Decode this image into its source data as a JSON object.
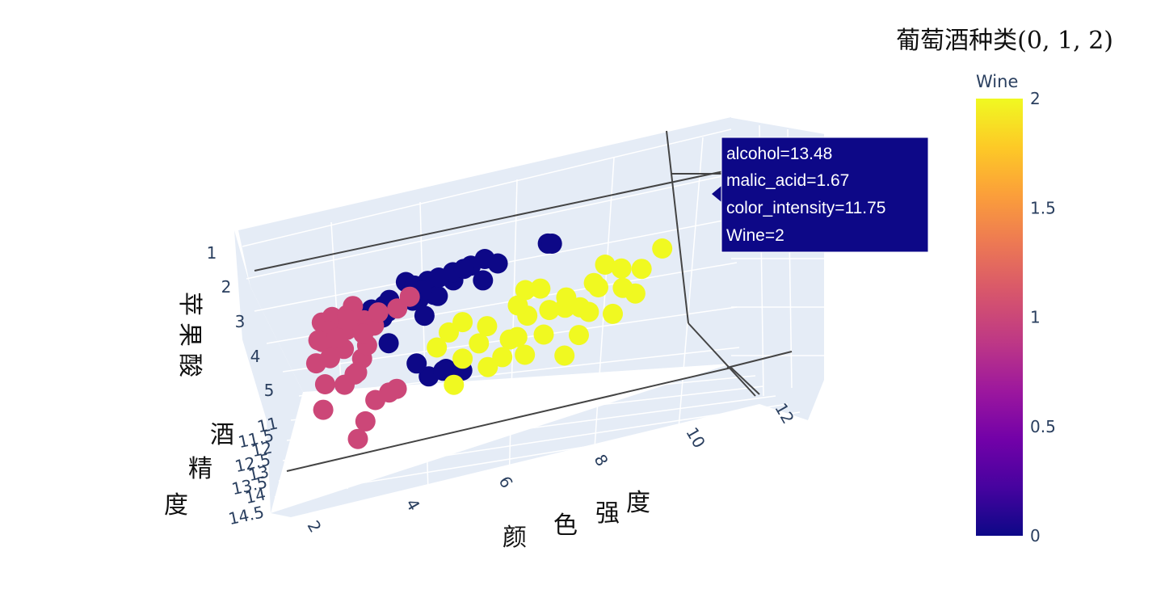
{
  "title": "葡萄酒种类(0, 1, 2)",
  "chart_data": {
    "type": "scatter3d",
    "xlabel": "颜色强度",
    "ylabel": "苹果酸",
    "zlabel": "酒精度",
    "x_ticks": [
      "2",
      "4",
      "6",
      "8",
      "10",
      "12"
    ],
    "y_ticks": [
      "1",
      "2",
      "3",
      "4",
      "5"
    ],
    "z_ticks": [
      "11",
      "11.5",
      "12",
      "12.5",
      "13",
      "13.5",
      "14",
      "14.5"
    ],
    "xlim": [
      1,
      13
    ],
    "ylim": [
      0.7,
      5.8
    ],
    "zlim": [
      11,
      14.8
    ],
    "color_variable": "Wine",
    "colorscale": [
      "#0d0887",
      "#46039f",
      "#7201a8",
      "#9c179e",
      "#bd3786",
      "#d8576b",
      "#ed7953",
      "#fb9f3a",
      "#fdca26",
      "#f0f921"
    ],
    "series": [
      {
        "class": 0,
        "color": "#0d0887",
        "points": [
          [
            4.38,
            1.95,
            13.2
          ],
          [
            5.68,
            2.36,
            14.1
          ],
          [
            4.32,
            1.71,
            13.2
          ],
          [
            5.25,
            1.78,
            13.3
          ],
          [
            5.05,
            1.81,
            14.2
          ],
          [
            5.2,
            1.92,
            13.7
          ],
          [
            7.2,
            1.57,
            14.3
          ],
          [
            5.6,
            1.59,
            13.8
          ],
          [
            7.5,
            1.73,
            14.2
          ],
          [
            4.5,
            1.86,
            13.6
          ],
          [
            6.25,
            1.65,
            13.7
          ],
          [
            5.1,
            1.7,
            13.5
          ],
          [
            5.24,
            1.83,
            14.0
          ],
          [
            5.75,
            1.87,
            13.4
          ],
          [
            6.8,
            1.64,
            14.2
          ],
          [
            7.0,
            1.76,
            13.6
          ],
          [
            5.4,
            1.9,
            13.8
          ],
          [
            4.2,
            1.97,
            13.0
          ],
          [
            6.3,
            1.68,
            14.1
          ],
          [
            5.9,
            1.62,
            13.9
          ],
          [
            8.9,
            1.5,
            14.4
          ],
          [
            9.0,
            1.45,
            14.3
          ],
          [
            4.3,
            2.13,
            13.5
          ],
          [
            6.6,
            1.55,
            14.0
          ],
          [
            3.9,
            1.94,
            13.1
          ],
          [
            5.1,
            2.2,
            13.8
          ],
          [
            3.6,
            2.03,
            12.8
          ],
          [
            4.0,
            2.33,
            13.9
          ],
          [
            5.3,
            2.65,
            13.6
          ],
          [
            4.2,
            2.84,
            12.9
          ],
          [
            5.0,
            3.8,
            12.3
          ],
          [
            5.5,
            4.04,
            12.8
          ],
          [
            5.9,
            4.04,
            12.6
          ],
          [
            4.8,
            3.98,
            13.2
          ],
          [
            5.4,
            3.61,
            12.2
          ]
        ]
      },
      {
        "class": 1,
        "color": "#cc4778",
        "points": [
          [
            2.6,
            1.2,
            12.3
          ],
          [
            2.9,
            1.15,
            12.4
          ],
          [
            3.1,
            1.35,
            12.0
          ],
          [
            3.3,
            1.25,
            12.5
          ],
          [
            2.7,
            1.45,
            12.2
          ],
          [
            3.5,
            1.05,
            12.6
          ],
          [
            2.4,
            1.65,
            12.1
          ],
          [
            2.8,
            1.8,
            12.0
          ],
          [
            3.2,
            1.7,
            12.4
          ],
          [
            2.5,
            1.9,
            12.3
          ],
          [
            3.7,
            1.55,
            12.5
          ],
          [
            3.0,
            2.2,
            12.2
          ],
          [
            2.2,
            2.3,
            11.9
          ],
          [
            3.4,
            2.5,
            12.0
          ],
          [
            2.6,
            2.6,
            12.4
          ],
          [
            3.9,
            1.4,
            12.0
          ],
          [
            4.1,
            1.2,
            12.3
          ],
          [
            4.6,
            1.1,
            12.2
          ],
          [
            5.0,
            1.0,
            12.5
          ],
          [
            3.6,
            1.9,
            11.8
          ],
          [
            2.3,
            3.1,
            11.9
          ],
          [
            2.8,
            3.4,
            12.1
          ],
          [
            3.2,
            3.2,
            12.3
          ],
          [
            4.1,
            3.8,
            12.0
          ],
          [
            2.1,
            4.0,
            11.9
          ],
          [
            3.1,
            4.6,
            11.8
          ],
          [
            3.5,
            4.3,
            12.3
          ],
          [
            3.9,
            4.2,
            12.4
          ],
          [
            2.8,
            5.1,
            11.7
          ],
          [
            3.3,
            1.6,
            12.7
          ],
          [
            2.9,
            2.0,
            12.5
          ],
          [
            3.6,
            2.1,
            12.6
          ],
          [
            3.1,
            2.7,
            11.6
          ]
        ]
      },
      {
        "class": 2,
        "color": "#f0f921",
        "points": [
          [
            11.75,
            1.67,
            13.48
          ],
          [
            8.4,
            2.1,
            13.2
          ],
          [
            9.8,
            2.4,
            13.4
          ],
          [
            10.2,
            1.9,
            13.5
          ],
          [
            8.9,
            2.7,
            12.9
          ],
          [
            7.9,
            2.9,
            13.1
          ],
          [
            9.3,
            3.1,
            13.3
          ],
          [
            10.6,
            2.3,
            13.7
          ],
          [
            7.3,
            3.4,
            12.8
          ],
          [
            8.2,
            3.6,
            13.0
          ],
          [
            9.5,
            3.4,
            13.4
          ],
          [
            6.5,
            3.5,
            13.0
          ],
          [
            7.0,
            3.9,
            12.7
          ],
          [
            6.0,
            4.1,
            13.2
          ],
          [
            5.6,
            4.5,
            12.6
          ],
          [
            6.6,
            4.8,
            13.5
          ],
          [
            5.8,
            3.0,
            13.1
          ],
          [
            7.6,
            4.2,
            13.0
          ],
          [
            8.6,
            4.4,
            12.9
          ],
          [
            9.1,
            4.0,
            13.2
          ],
          [
            10.1,
            3.7,
            13.5
          ],
          [
            10.8,
            3.2,
            13.6
          ],
          [
            5.4,
            3.3,
            12.9
          ],
          [
            6.2,
            2.4,
            12.7
          ],
          [
            7.7,
            2.0,
            12.5
          ],
          [
            9.9,
            2.9,
            13.8
          ],
          [
            10.5,
            2.6,
            13.2
          ],
          [
            8.0,
            1.9,
            13.0
          ],
          [
            6.8,
            2.7,
            12.7
          ],
          [
            11.1,
            2.2,
            13.4
          ],
          [
            9.0,
            2.5,
            13.1
          ],
          [
            7.5,
            3.2,
            12.6
          ],
          [
            8.5,
            3.0,
            13.3
          ]
        ]
      }
    ],
    "hover": {
      "lines": [
        "alcohol=13.48",
        "malic_acid=1.67",
        "color_intensity=11.75",
        "Wine=2"
      ],
      "color": "#0d0887"
    },
    "colorbar": {
      "title": "Wine",
      "ticks": [
        "0",
        "0.5",
        "1",
        "1.5",
        "2"
      ],
      "range": [
        0,
        2
      ]
    }
  }
}
